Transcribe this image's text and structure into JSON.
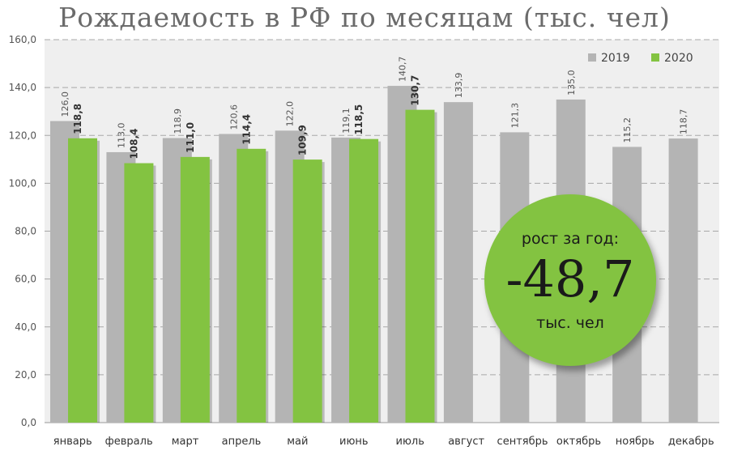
{
  "chart_data": {
    "type": "bar",
    "title": "Рождаемость в РФ по месяцам (тыс. чел)",
    "categories": [
      "январь",
      "февраль",
      "март",
      "апрель",
      "май",
      "июнь",
      "июль",
      "август",
      "сентябрь",
      "октябрь",
      "ноябрь",
      "декабрь"
    ],
    "series": [
      {
        "name": "2019",
        "color": "#b4b4b4",
        "values": [
          126.0,
          113.0,
          118.9,
          120.6,
          122.0,
          119.1,
          140.7,
          133.9,
          121.3,
          135.0,
          115.2,
          118.7
        ],
        "labels": [
          "126,0",
          "113,0",
          "118,9",
          "120,6",
          "122,0",
          "119,1",
          "140,7",
          "133,9",
          "121,3",
          "135,0",
          "115,2",
          "118,7"
        ]
      },
      {
        "name": "2020",
        "color": "#83c341",
        "values": [
          118.8,
          108.4,
          111.0,
          114.4,
          109.9,
          118.5,
          130.7,
          null,
          null,
          null,
          null,
          null
        ],
        "labels": [
          "118,8",
          "108,4",
          "111,0",
          "114,4",
          "109,9",
          "118,5",
          "130,7",
          "",
          "",
          "",
          "",
          ""
        ]
      }
    ],
    "ylim": [
      0,
      160
    ],
    "yticks": [
      "0,0",
      "20,0",
      "40,0",
      "60,0",
      "80,0",
      "100,0",
      "120,0",
      "140,0",
      "160,0"
    ],
    "grid": true,
    "legend_position": "top-right",
    "annotation": {
      "label": "рост за год:",
      "value": "-48,7",
      "unit": "тыс. чел",
      "color": "#83c341"
    }
  }
}
